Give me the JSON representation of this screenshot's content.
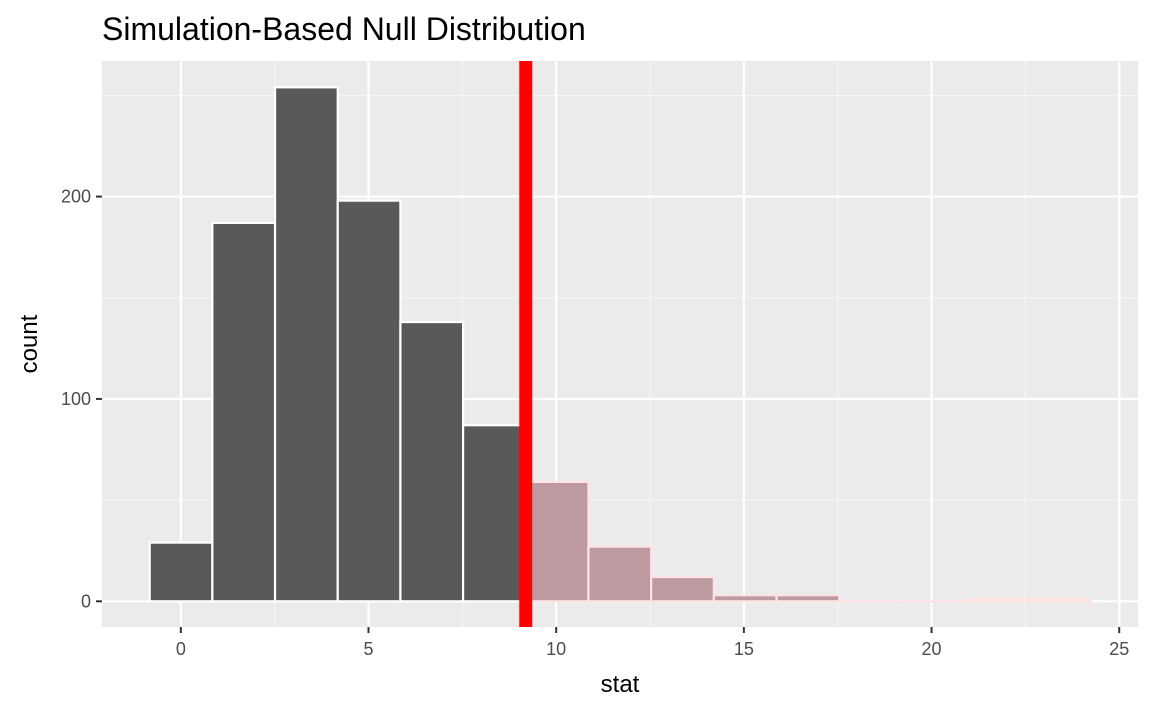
{
  "chart_data": {
    "type": "bar",
    "title": "Simulation-Based Null Distribution",
    "xlabel": "stat",
    "ylabel": "count",
    "xlim": [
      -2.1,
      25.5
    ],
    "ylim": [
      -12.7,
      267
    ],
    "x_ticks": [
      0,
      5,
      10,
      15,
      20,
      25
    ],
    "y_ticks": [
      0,
      100,
      200
    ],
    "bin_width": 1.67,
    "bins": [
      {
        "x_start": -0.83,
        "x_end": 0.84,
        "count": 29
      },
      {
        "x_start": 0.84,
        "x_end": 2.51,
        "count": 187
      },
      {
        "x_start": 2.51,
        "x_end": 4.18,
        "count": 254
      },
      {
        "x_start": 4.18,
        "x_end": 5.85,
        "count": 198
      },
      {
        "x_start": 5.85,
        "x_end": 7.52,
        "count": 138
      },
      {
        "x_start": 7.52,
        "x_end": 9.19,
        "count": 87
      },
      {
        "x_start": 9.19,
        "x_end": 10.86,
        "count": 59
      },
      {
        "x_start": 10.86,
        "x_end": 12.53,
        "count": 27
      },
      {
        "x_start": 12.53,
        "x_end": 14.2,
        "count": 12
      },
      {
        "x_start": 14.2,
        "x_end": 15.87,
        "count": 3
      },
      {
        "x_start": 15.87,
        "x_end": 17.54,
        "count": 3
      },
      {
        "x_start": 17.54,
        "x_end": 19.21,
        "count": 0
      },
      {
        "x_start": 19.21,
        "x_end": 20.88,
        "count": 0
      },
      {
        "x_start": 20.88,
        "x_end": 22.55,
        "count": 1
      },
      {
        "x_start": 22.55,
        "x_end": 24.22,
        "count": 1
      }
    ],
    "observed_stat": 9.19,
    "shade_direction": "greater",
    "grid": true,
    "colors": {
      "panel_background": "#ebebeb",
      "grid_major": "#ffffff",
      "grid_minor": "#f5f5f5",
      "bar_fill": "#595959",
      "bar_outline": "#ffffff",
      "shaded_fill": "#bc9a9f",
      "shaded_outline": "#ffe2e6",
      "observed_line": "#ff0000"
    }
  }
}
